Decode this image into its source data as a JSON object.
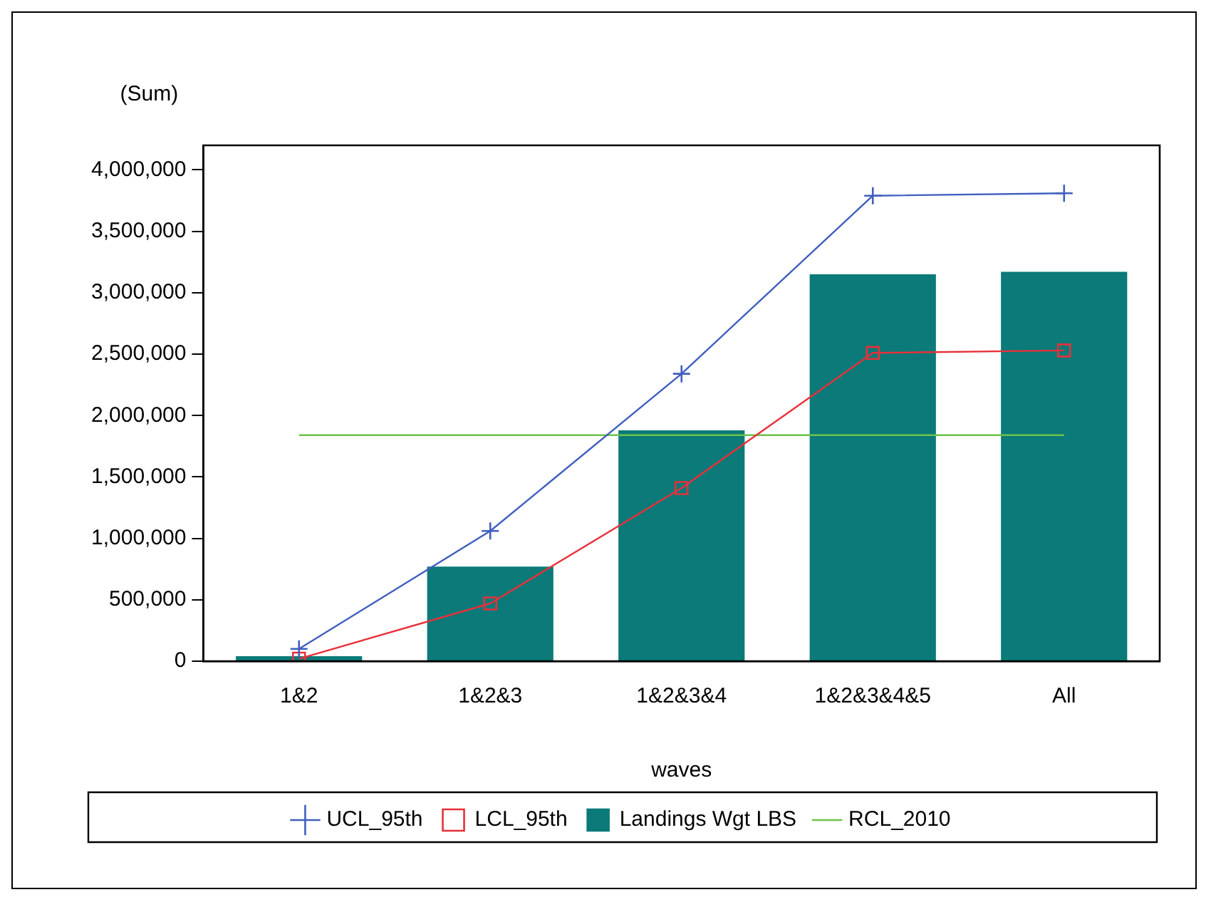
{
  "chart_data": {
    "type": "bar",
    "ylabel": "(Sum)",
    "xlabel": "waves",
    "categories": [
      "1&2",
      "1&2&3",
      "1&2&3&4",
      "1&2&3&4&5",
      "All"
    ],
    "series": [
      {
        "name": "UCL_95th",
        "type": "line",
        "color": "#3f5fbf",
        "marker": "cross",
        "values": [
          100000,
          1060000,
          2340000,
          3790000,
          3810000
        ]
      },
      {
        "name": "LCL_95th",
        "type": "line",
        "color": "#e8303a",
        "marker": "square",
        "values": [
          20000,
          470000,
          1410000,
          2510000,
          2530000
        ]
      },
      {
        "name": "Landings Wgt LBS",
        "color": "#0b7a78",
        "values": [
          40000,
          770000,
          1880000,
          3150000,
          3170000
        ]
      },
      {
        "name": "RCL_2010",
        "type": "line",
        "color": "#6cc24a",
        "marker": "none",
        "values": [
          1840000,
          1840000,
          1840000,
          1840000,
          1840000
        ]
      }
    ],
    "ylim": [
      0,
      4200000
    ],
    "yticks": [
      0,
      {
        "value": 500000,
        "label": "500,000"
      },
      {
        "value": 1000000,
        "label": "1,000,000"
      },
      {
        "value": 1500000,
        "label": "1,500,000"
      },
      {
        "value": 2000000,
        "label": "2,000,000"
      },
      {
        "value": 2500000,
        "label": "2,500,000"
      },
      {
        "value": 3000000,
        "label": "3,000,000"
      },
      {
        "value": 3500000,
        "label": "3,500,000"
      },
      {
        "value": 4000000,
        "label": "4,000,000"
      }
    ],
    "grid": false,
    "legend": "bottom"
  }
}
